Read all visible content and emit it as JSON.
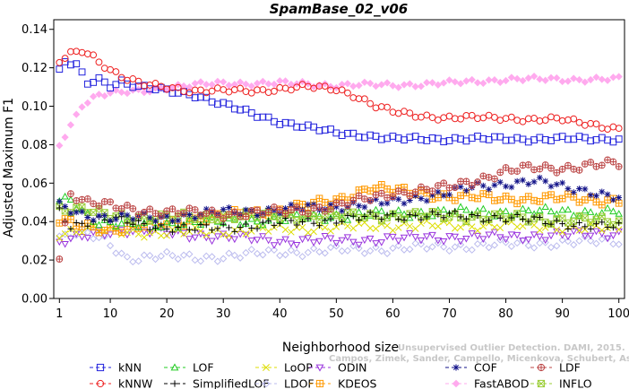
{
  "chart_data": {
    "type": "scatter",
    "title": "SpamBase_02_v06",
    "xlabel": "Neighborhood size",
    "ylabel": "Adjusted Maximum F1",
    "xlim": [
      0,
      101
    ],
    "ylim": [
      0,
      0.145
    ],
    "x_ticks": [
      "1",
      "10",
      "20",
      "30",
      "40",
      "50",
      "60",
      "70",
      "80",
      "90",
      "100"
    ],
    "y_ticks": [
      "0.00",
      "0.02",
      "0.04",
      "0.06",
      "0.08",
      "0.10",
      "0.12",
      "0.14"
    ],
    "grid": false,
    "legend_position": "bottom",
    "watermark": [
      "Unsupervised Outlier Detection. DAMI, 2015.",
      "Campos, Zimek, Sander, Campello, Micenkova, Schubert, Assent, Houle"
    ],
    "series": [
      {
        "name": "kNN",
        "color": "#2222dd",
        "marker": "square",
        "knots": [
          [
            1,
            0.118
          ],
          [
            2,
            0.123
          ],
          [
            4,
            0.121
          ],
          [
            6,
            0.112
          ],
          [
            8,
            0.114
          ],
          [
            10,
            0.111
          ],
          [
            12,
            0.113
          ],
          [
            15,
            0.11
          ],
          [
            20,
            0.108
          ],
          [
            25,
            0.106
          ],
          [
            30,
            0.101
          ],
          [
            35,
            0.096
          ],
          [
            40,
            0.092
          ],
          [
            45,
            0.089
          ],
          [
            50,
            0.086
          ],
          [
            55,
            0.085
          ],
          [
            60,
            0.083
          ],
          [
            65,
            0.083
          ],
          [
            70,
            0.083
          ],
          [
            75,
            0.083
          ],
          [
            80,
            0.083
          ],
          [
            85,
            0.083
          ],
          [
            90,
            0.083
          ],
          [
            95,
            0.083
          ],
          [
            100,
            0.083
          ]
        ]
      },
      {
        "name": "kNNW",
        "color": "#ee2222",
        "marker": "circle",
        "knots": [
          [
            1,
            0.123
          ],
          [
            3,
            0.127
          ],
          [
            5,
            0.129
          ],
          [
            7,
            0.126
          ],
          [
            10,
            0.119
          ],
          [
            13,
            0.114
          ],
          [
            16,
            0.111
          ],
          [
            20,
            0.11
          ],
          [
            25,
            0.108
          ],
          [
            30,
            0.108
          ],
          [
            35,
            0.108
          ],
          [
            40,
            0.109
          ],
          [
            45,
            0.11
          ],
          [
            50,
            0.109
          ],
          [
            53,
            0.106
          ],
          [
            57,
            0.1
          ],
          [
            60,
            0.097
          ],
          [
            65,
            0.095
          ],
          [
            70,
            0.094
          ],
          [
            75,
            0.094
          ],
          [
            80,
            0.094
          ],
          [
            85,
            0.093
          ],
          [
            90,
            0.093
          ],
          [
            95,
            0.091
          ],
          [
            100,
            0.088
          ]
        ]
      },
      {
        "name": "LOF",
        "color": "#22cc22",
        "marker": "triangle-up",
        "knots": [
          [
            1,
            0.05
          ],
          [
            3,
            0.052
          ],
          [
            5,
            0.046
          ],
          [
            8,
            0.04
          ],
          [
            10,
            0.039
          ],
          [
            15,
            0.038
          ],
          [
            20,
            0.039
          ],
          [
            30,
            0.04
          ],
          [
            40,
            0.041
          ],
          [
            50,
            0.043
          ],
          [
            60,
            0.044
          ],
          [
            70,
            0.045
          ],
          [
            80,
            0.045
          ],
          [
            90,
            0.045
          ],
          [
            100,
            0.045
          ]
        ]
      },
      {
        "name": "SimplifiedLOF",
        "color": "#000000",
        "marker": "plus",
        "knots": [
          [
            1,
            0.046
          ],
          [
            3,
            0.038
          ],
          [
            6,
            0.04
          ],
          [
            10,
            0.041
          ],
          [
            15,
            0.039
          ],
          [
            20,
            0.037
          ],
          [
            25,
            0.036
          ],
          [
            30,
            0.037
          ],
          [
            40,
            0.039
          ],
          [
            50,
            0.041
          ],
          [
            60,
            0.043
          ],
          [
            70,
            0.043
          ],
          [
            80,
            0.042
          ],
          [
            90,
            0.039
          ],
          [
            100,
            0.037
          ]
        ]
      },
      {
        "name": "LoOP",
        "color": "#dddd00",
        "marker": "cross",
        "knots": [
          [
            1,
            0.034
          ],
          [
            5,
            0.036
          ],
          [
            10,
            0.035
          ],
          [
            20,
            0.034
          ],
          [
            30,
            0.035
          ],
          [
            40,
            0.036
          ],
          [
            50,
            0.037
          ],
          [
            60,
            0.038
          ],
          [
            70,
            0.038
          ],
          [
            80,
            0.038
          ],
          [
            90,
            0.037
          ],
          [
            100,
            0.036
          ]
        ]
      },
      {
        "name": "LDOF",
        "color": "#bbbbee",
        "marker": "diamond",
        "knots": [
          [
            1,
            0.032
          ],
          [
            5,
            0.034
          ],
          [
            9,
            0.03
          ],
          [
            13,
            0.021
          ],
          [
            18,
            0.022
          ],
          [
            25,
            0.021
          ],
          [
            30,
            0.022
          ],
          [
            40,
            0.024
          ],
          [
            50,
            0.025
          ],
          [
            60,
            0.026
          ],
          [
            70,
            0.027
          ],
          [
            80,
            0.028
          ],
          [
            90,
            0.029
          ],
          [
            100,
            0.03
          ]
        ]
      },
      {
        "name": "ODIN",
        "color": "#9933dd",
        "marker": "triangle-down",
        "knots": [
          [
            1,
            0.029
          ],
          [
            4,
            0.031
          ],
          [
            8,
            0.034
          ],
          [
            12,
            0.036
          ],
          [
            20,
            0.034
          ],
          [
            30,
            0.032
          ],
          [
            40,
            0.03
          ],
          [
            50,
            0.03
          ],
          [
            60,
            0.031
          ],
          [
            70,
            0.032
          ],
          [
            80,
            0.032
          ],
          [
            90,
            0.033
          ],
          [
            100,
            0.034
          ]
        ]
      },
      {
        "name": "KDEOS",
        "color": "#ff9900",
        "marker": "boxed-cross",
        "knots": [
          [
            1,
            0.04
          ],
          [
            5,
            0.038
          ],
          [
            10,
            0.036
          ],
          [
            15,
            0.037
          ],
          [
            20,
            0.039
          ],
          [
            30,
            0.043
          ],
          [
            40,
            0.046
          ],
          [
            50,
            0.051
          ],
          [
            56,
            0.058
          ],
          [
            60,
            0.056
          ],
          [
            65,
            0.055
          ],
          [
            70,
            0.053
          ],
          [
            80,
            0.052
          ],
          [
            90,
            0.052
          ],
          [
            100,
            0.051
          ]
        ]
      },
      {
        "name": "COF",
        "color": "#111188",
        "marker": "asterisk",
        "knots": [
          [
            1,
            0.048
          ],
          [
            5,
            0.044
          ],
          [
            10,
            0.042
          ],
          [
            20,
            0.042
          ],
          [
            30,
            0.045
          ],
          [
            40,
            0.046
          ],
          [
            50,
            0.048
          ],
          [
            60,
            0.05
          ],
          [
            65,
            0.053
          ],
          [
            70,
            0.055
          ],
          [
            75,
            0.058
          ],
          [
            80,
            0.06
          ],
          [
            85,
            0.061
          ],
          [
            90,
            0.058
          ],
          [
            95,
            0.056
          ],
          [
            100,
            0.052
          ]
        ]
      },
      {
        "name": "FastABOD",
        "color": "#ffaaee",
        "marker": "filled-diamond",
        "knots": [
          [
            1,
            0.08
          ],
          [
            3,
            0.09
          ],
          [
            5,
            0.101
          ],
          [
            8,
            0.106
          ],
          [
            12,
            0.107
          ],
          [
            16,
            0.108
          ],
          [
            20,
            0.11
          ],
          [
            30,
            0.112
          ],
          [
            40,
            0.112
          ],
          [
            50,
            0.111
          ],
          [
            60,
            0.111
          ],
          [
            70,
            0.112
          ],
          [
            80,
            0.114
          ],
          [
            90,
            0.114
          ],
          [
            100,
            0.114
          ]
        ]
      },
      {
        "name": "LDF",
        "color": "#bb4444",
        "marker": "circle-plus",
        "knots": [
          [
            1,
            0.022
          ],
          [
            3,
            0.055
          ],
          [
            6,
            0.05
          ],
          [
            10,
            0.048
          ],
          [
            15,
            0.046
          ],
          [
            20,
            0.045
          ],
          [
            30,
            0.044
          ],
          [
            40,
            0.045
          ],
          [
            50,
            0.048
          ],
          [
            60,
            0.055
          ],
          [
            65,
            0.056
          ],
          [
            70,
            0.058
          ],
          [
            75,
            0.062
          ],
          [
            80,
            0.066
          ],
          [
            85,
            0.068
          ],
          [
            90,
            0.068
          ],
          [
            95,
            0.069
          ],
          [
            100,
            0.07
          ]
        ]
      },
      {
        "name": "INFLO",
        "color": "#99cc33",
        "marker": "boxed-x",
        "knots": [
          [
            1,
            0.047
          ],
          [
            5,
            0.046
          ],
          [
            10,
            0.043
          ],
          [
            20,
            0.042
          ],
          [
            30,
            0.043
          ],
          [
            40,
            0.043
          ],
          [
            50,
            0.043
          ],
          [
            60,
            0.043
          ],
          [
            70,
            0.043
          ],
          [
            80,
            0.042
          ],
          [
            90,
            0.041
          ],
          [
            100,
            0.04
          ]
        ]
      }
    ]
  }
}
